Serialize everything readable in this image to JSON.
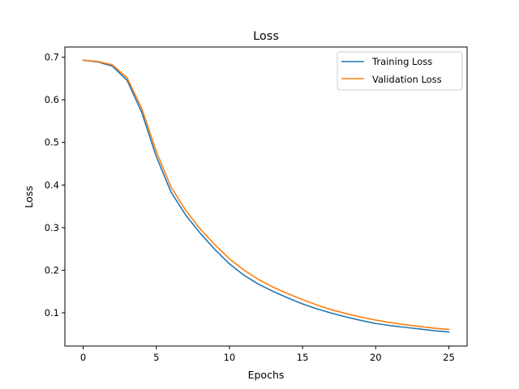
{
  "chart_data": {
    "type": "line",
    "title": "Loss",
    "xlabel": "Epochs",
    "ylabel": "Loss",
    "xlim": [
      -1.25,
      26.25
    ],
    "ylim": [
      0.022,
      0.724
    ],
    "xticks": [
      0,
      5,
      10,
      15,
      20,
      25
    ],
    "yticks": [
      0.1,
      0.2,
      0.3,
      0.4,
      0.5,
      0.6,
      0.7
    ],
    "grid": false,
    "legend_position": "top-right",
    "x": [
      0,
      1,
      2,
      3,
      4,
      5,
      6,
      7,
      8,
      9,
      10,
      11,
      12,
      13,
      14,
      15,
      16,
      17,
      18,
      19,
      20,
      21,
      22,
      23,
      24,
      25
    ],
    "series": [
      {
        "name": "Training Loss",
        "color": "#1f77b4",
        "values": [
          0.693,
          0.689,
          0.679,
          0.646,
          0.571,
          0.467,
          0.384,
          0.33,
          0.287,
          0.249,
          0.215,
          0.188,
          0.167,
          0.15,
          0.135,
          0.121,
          0.109,
          0.099,
          0.09,
          0.082,
          0.075,
          0.07,
          0.066,
          0.062,
          0.058,
          0.055
        ]
      },
      {
        "name": "Validation Loss",
        "color": "#ff7f0e",
        "values": [
          0.693,
          0.69,
          0.682,
          0.652,
          0.58,
          0.479,
          0.396,
          0.341,
          0.297,
          0.26,
          0.227,
          0.2,
          0.178,
          0.16,
          0.145,
          0.131,
          0.118,
          0.107,
          0.098,
          0.09,
          0.083,
          0.077,
          0.072,
          0.068,
          0.064,
          0.061
        ]
      }
    ]
  }
}
